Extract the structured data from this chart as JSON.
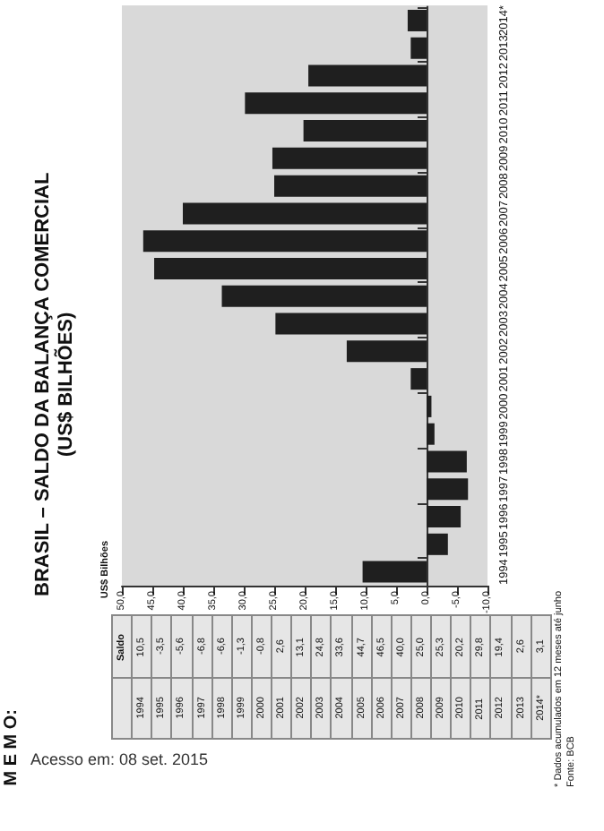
{
  "chart_data": {
    "type": "bar",
    "orientation": "horizontal",
    "title": "BRASIL – SALDO DA BALANÇA COMERCIAL",
    "subtitle": "(US$ BILHÕES)",
    "categories": [
      "2014*",
      "2013",
      "2012",
      "2011",
      "2010",
      "2009",
      "2008",
      "2007",
      "2006",
      "2005",
      "2004",
      "2003",
      "2002",
      "2001",
      "2000",
      "1999",
      "1998",
      "1997",
      "1996",
      "1995",
      "1994"
    ],
    "values": [
      3.1,
      2.6,
      19.4,
      29.8,
      20.2,
      25.3,
      25.0,
      40.0,
      46.5,
      44.7,
      33.6,
      24.8,
      13.1,
      2.6,
      -0.8,
      -1.3,
      -6.6,
      -6.8,
      -5.6,
      -3.5,
      10.5
    ],
    "color": "#1f1f1f",
    "xlim": [
      50,
      -10
    ],
    "xticks": [
      {
        "value": 50,
        "label": "50,0"
      },
      {
        "value": 45,
        "label": "45,0"
      },
      {
        "value": 40,
        "label": "40,0"
      },
      {
        "value": 35,
        "label": "35,0"
      },
      {
        "value": 30,
        "label": "30,0"
      },
      {
        "value": 25,
        "label": "25,0"
      },
      {
        "value": 20,
        "label": "20,0"
      },
      {
        "value": 15,
        "label": "15,0"
      },
      {
        "value": 10,
        "label": "10,0"
      },
      {
        "value": 5,
        "label": "5,0"
      },
      {
        "value": 0,
        "label": "0,0"
      },
      {
        "value": -5,
        "label": "-5,0"
      },
      {
        "value": -10,
        "label": "-10,0"
      }
    ],
    "annotations": [
      "M E M O:",
      "Saldo",
      "* Dados acumulados em 12 meses até junho",
      "Fonte: BCB",
      "Acesso em: 08 set. 2015",
      "US$ Bilhões",
      "1994",
      "10,5",
      "1995",
      "-3,5",
      "1996",
      "-5,6",
      "1997",
      "-6,8",
      "1998",
      "-6,6",
      "1999",
      "-1,3",
      "2000",
      "-0,8",
      "2001",
      "2,6",
      "2002",
      "13,1",
      "2003",
      "24,8",
      "2004",
      "33,6",
      "2005",
      "44,7",
      "2006",
      "46,5",
      "2007",
      "40,0",
      "2008",
      "25,0",
      "2009",
      "25,3",
      "2010",
      "20,2",
      "2011",
      "29,8",
      "2012",
      "19,4",
      "2013",
      "2,6",
      "2014*",
      "3,1"
    ]
  }
}
